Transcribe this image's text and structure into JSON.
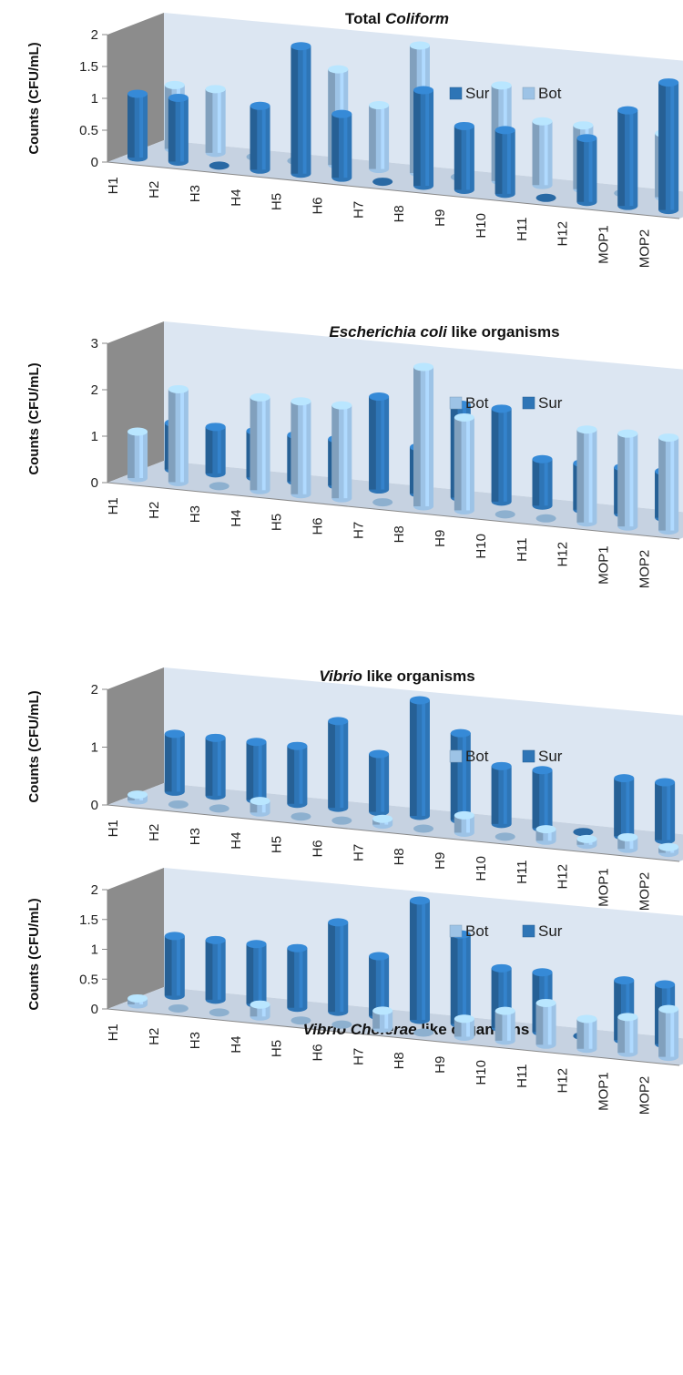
{
  "colors": {
    "sur": "#2e75b6",
    "bot": "#9dc3e6",
    "wall": "#8c8c8c",
    "back": "#dce6f2",
    "floor": "#c6d2e1"
  },
  "chart_data": [
    {
      "type": "bar",
      "title_parts": [
        {
          "text": "Total ",
          "italic": false
        },
        {
          "text": "Coliform",
          "italic": true
        }
      ],
      "ylabel": "Counts (CFU/mL)",
      "ylim": [
        0,
        2
      ],
      "yticks": [
        "0",
        "0.5",
        "1",
        "1.5",
        "2"
      ],
      "categories": [
        "H1",
        "H2",
        "H3",
        "H4",
        "H5",
        "H6",
        "H7",
        "H8",
        "H9",
        "H10",
        "H11",
        "H12",
        "MOP1",
        "MOP2"
      ],
      "legend": [
        {
          "key": "sur",
          "label": "Sur"
        },
        {
          "key": "bot",
          "label": "Bot"
        }
      ],
      "series": [
        {
          "key": "sur",
          "name": "Sur",
          "values": [
            1,
            1,
            0,
            1,
            2,
            1,
            0,
            1.5,
            1,
            1,
            0,
            1,
            1.5,
            2
          ]
        },
        {
          "key": "bot",
          "name": "Bot",
          "values": [
            1,
            1,
            0,
            0,
            1.5,
            1,
            2,
            0,
            1.5,
            1,
            1,
            0,
            1,
            1.5
          ]
        }
      ]
    },
    {
      "type": "bar",
      "title_parts": [
        {
          "text": "Escherichia coli",
          "italic": true
        },
        {
          "text": " like organisms",
          "italic": false
        }
      ],
      "ylabel": "Counts (CFU/mL)",
      "ylim": [
        0,
        3
      ],
      "yticks": [
        "0",
        "1",
        "2",
        "3"
      ],
      "categories": [
        "H1",
        "H2",
        "H3",
        "H4",
        "H5",
        "H6",
        "H7",
        "H8",
        "H9",
        "H10",
        "H11",
        "H12",
        "MOP1",
        "MOP2"
      ],
      "legend": [
        {
          "key": "bot",
          "label": "Bot"
        },
        {
          "key": "sur",
          "label": "Sur"
        }
      ],
      "series": [
        {
          "key": "bot",
          "name": "Bot",
          "values": [
            1,
            2,
            0,
            2,
            2,
            2,
            0,
            3,
            2,
            0,
            0,
            2,
            2,
            2
          ]
        },
        {
          "key": "sur",
          "name": "Sur",
          "values": [
            1,
            1,
            1,
            1,
            1,
            2,
            1,
            2,
            2,
            1,
            1,
            1,
            1,
            2
          ]
        }
      ]
    },
    {
      "type": "bar",
      "title_parts": [
        {
          "text": "Vibrio",
          "italic": true
        },
        {
          "text": " like organisms",
          "italic": false
        }
      ],
      "ylabel": "Counts (CFU/mL)",
      "ylim": [
        0,
        2
      ],
      "yticks": [
        "0",
        "1",
        "2"
      ],
      "categories": [
        "H1",
        "H2",
        "H3",
        "H4",
        "H5",
        "H6",
        "H7",
        "H8",
        "H9",
        "H10",
        "H11",
        "H12",
        "MOP1",
        "MOP2"
      ],
      "legend": [
        {
          "key": "bot",
          "label": "Bot"
        },
        {
          "key": "sur",
          "label": "Sur"
        }
      ],
      "series": [
        {
          "key": "bot",
          "name": "Bot",
          "values": [
            0.1,
            0,
            0,
            0.2,
            0,
            0,
            0.1,
            0,
            0.3,
            0,
            0.2,
            0.1,
            0.2,
            0.1
          ]
        },
        {
          "key": "sur",
          "name": "Sur",
          "values": [
            1,
            1,
            1,
            1,
            1.5,
            1,
            2,
            1.5,
            1,
            1,
            0,
            1,
            1,
            1.5
          ]
        }
      ]
    },
    {
      "type": "bar",
      "title_parts": [
        {
          "text": "Vibrio Cholerae",
          "italic": true
        },
        {
          "text": " like organisms",
          "italic": false
        }
      ],
      "ylabel": "Counts (CFU/mL)",
      "ylim": [
        0,
        2
      ],
      "yticks": [
        "0",
        "0.5",
        "1",
        "1.5",
        "2"
      ],
      "categories": [
        "H1",
        "H2",
        "H3",
        "H4",
        "H5",
        "H6",
        "H7",
        "H8",
        "H9",
        "H10",
        "H11",
        "H12",
        "MOP1",
        "MOP2"
      ],
      "legend": [
        {
          "key": "bot",
          "label": "Bot"
        },
        {
          "key": "sur",
          "label": "Sur"
        }
      ],
      "series": [
        {
          "key": "bot",
          "name": "Bot",
          "values": [
            0.1,
            0,
            0,
            0.2,
            0,
            0,
            0.3,
            0,
            0.3,
            0.5,
            0.7,
            0.5,
            0.6,
            0.8
          ]
        },
        {
          "key": "sur",
          "name": "Sur",
          "values": [
            1,
            1,
            1,
            1,
            1.5,
            1,
            2,
            1.5,
            1,
            1,
            0,
            1,
            1,
            1.5
          ]
        }
      ]
    }
  ]
}
